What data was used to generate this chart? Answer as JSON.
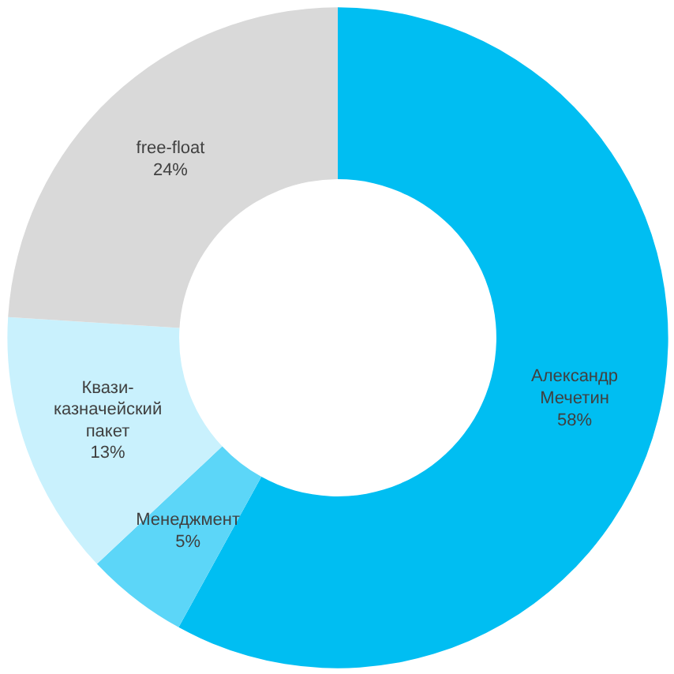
{
  "chart_data": {
    "type": "donut",
    "categories": [
      "Александр\nМечетин",
      "Менеджмент",
      "Квази-\nказначейский\nпакет",
      "free-float"
    ],
    "values": [
      58,
      5,
      13,
      24
    ],
    "colors": [
      "#00bef2",
      "#5cd6f8",
      "#c9f1fd",
      "#d9d9d9"
    ],
    "value_labels": [
      "58%",
      "5%",
      "13%",
      "24%"
    ],
    "legend": false
  }
}
